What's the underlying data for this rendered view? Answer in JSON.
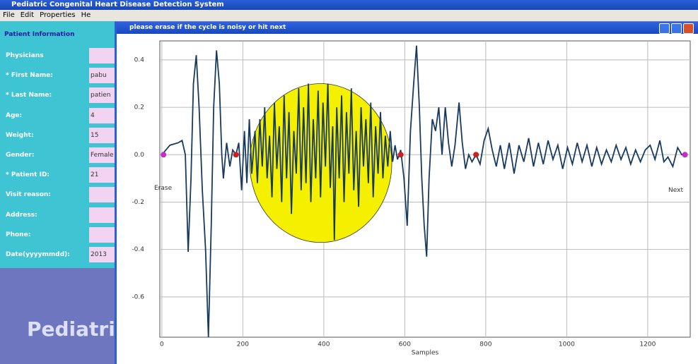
{
  "window": {
    "title": "Pediatric Congenital Heart Disease Detection System"
  },
  "menu": [
    "File",
    "Edit",
    "Properties",
    "He"
  ],
  "patient_panel": {
    "header": "Patient Information",
    "fields": [
      {
        "label": "Physicians"
      },
      {
        "label": "* First Name:",
        "value": "pabu"
      },
      {
        "label": "* Last Name:",
        "value": "patien"
      },
      {
        "label": "Age:",
        "value": "4"
      },
      {
        "label": "Weight:",
        "value": "15"
      },
      {
        "label": "Gender:",
        "value": "Female"
      },
      {
        "label": "* Patient ID:",
        "value": "21"
      },
      {
        "label": "Visit reason:"
      },
      {
        "label": "Address:"
      },
      {
        "label": "Phone:"
      },
      {
        "label": "Date(yyyymmdd):",
        "value": "2013"
      }
    ]
  },
  "banner": "Pediatric",
  "child_window": {
    "title": "please erase if the cycle is noisy or hit next"
  },
  "chart_data": {
    "type": "line",
    "x_label": "Samples",
    "color": "#173a60",
    "grid": true,
    "annotations": [
      "Erase",
      "Next"
    ],
    "xlim": [
      -5,
      1305
    ],
    "xticks": [
      0,
      200,
      400,
      600,
      800,
      1000,
      1200
    ],
    "ylim": [
      -0.77,
      0.48
    ],
    "yticks": [
      0.4,
      0.2,
      {
        "value": 0,
        "label": "0.0"
      },
      -0.2,
      -0.4,
      -0.6
    ],
    "highlight": {
      "color": "#f4f000",
      "x": [
        217,
        568
      ],
      "y": [
        -0.37,
        0.3
      ]
    },
    "x": [
      0,
      10,
      20,
      40,
      50,
      58,
      65,
      72,
      78,
      85,
      92,
      100,
      108,
      115,
      122,
      128,
      135,
      142,
      148,
      152,
      160,
      168,
      175,
      183,
      190,
      197,
      204,
      210,
      216,
      222,
      230,
      236,
      242,
      248,
      254,
      260,
      266,
      272,
      278,
      284,
      290,
      296,
      302,
      308,
      314,
      320,
      326,
      332,
      338,
      344,
      350,
      356,
      362,
      368,
      374,
      380,
      386,
      392,
      398,
      404,
      410,
      416,
      422,
      426,
      432,
      438,
      444,
      450,
      456,
      462,
      468,
      474,
      480,
      486,
      492,
      498,
      504,
      510,
      516,
      522,
      528,
      534,
      540,
      546,
      552,
      558,
      564,
      570,
      576,
      582,
      590,
      598,
      606,
      614,
      622,
      629,
      636,
      642,
      648,
      654,
      660,
      668,
      676,
      684,
      692,
      700,
      708,
      716,
      724,
      734,
      742,
      750,
      758,
      766,
      776,
      786,
      796,
      806,
      816,
      826,
      836,
      846,
      858,
      870,
      882,
      894,
      906,
      918,
      930,
      942,
      954,
      966,
      978,
      990,
      1002,
      1014,
      1026,
      1038,
      1050,
      1062,
      1074,
      1086,
      1098,
      1110,
      1122,
      1134,
      1146,
      1158,
      1170,
      1182,
      1194,
      1206,
      1218,
      1230,
      1240,
      1250,
      1262,
      1274,
      1284,
      1292
    ],
    "values": [
      0,
      0.02,
      0.04,
      0.05,
      0.06,
      0,
      -0.41,
      -0.1,
      0.3,
      0.42,
      0.2,
      -0.15,
      -0.4,
      -0.77,
      -0.3,
      0.2,
      0.44,
      0.3,
      0,
      -0.1,
      0.05,
      -0.05,
      0.02,
      0,
      0.05,
      -0.15,
      0.1,
      -0.12,
      0.15,
      -0.08,
      0.1,
      -0.12,
      0.15,
      -0.05,
      0.2,
      -0.1,
      0.08,
      -0.18,
      0.22,
      -0.06,
      0.12,
      -0.2,
      0.25,
      -0.1,
      0.18,
      -0.25,
      0.1,
      -0.08,
      0.28,
      -0.15,
      0.2,
      -0.12,
      0.3,
      -0.2,
      0.15,
      -0.1,
      0.27,
      -0.18,
      0.22,
      -0.05,
      0.3,
      -0.14,
      0.12,
      -0.36,
      0.2,
      -0.1,
      0.25,
      -0.2,
      0.18,
      -0.08,
      0.28,
      -0.15,
      0.1,
      -0.22,
      0.2,
      -0.05,
      0.15,
      -0.12,
      0.22,
      -0.18,
      0.12,
      -0.08,
      0.18,
      -0.1,
      0.08,
      -0.05,
      0.1,
      -0.03,
      0.04,
      -0.02,
      0.02,
      -0.1,
      -0.3,
      0.1,
      0.3,
      0.46,
      0.2,
      -0.1,
      -0.3,
      -0.43,
      -0.1,
      0.15,
      0.1,
      0.2,
      0,
      0.2,
      0.05,
      -0.05,
      0.04,
      0.22,
      0.05,
      -0.06,
      0,
      -0.03,
      0,
      -0.04,
      0.06,
      0.11,
      0.02,
      -0.05,
      0.04,
      -0.06,
      0.05,
      -0.08,
      0.04,
      -0.03,
      0.07,
      -0.05,
      0.05,
      -0.04,
      0.06,
      -0.02,
      0.04,
      -0.06,
      0.03,
      -0.04,
      0.05,
      -0.03,
      0.04,
      -0.05,
      0.03,
      -0.04,
      0.02,
      -0.03,
      0.04,
      -0.02,
      0.03,
      -0.04,
      0.02,
      -0.03,
      0.02,
      0.04,
      -0.02,
      0.06,
      -0.03,
      -0.01,
      -0.05,
      0.03,
      0,
      0
    ],
    "markers": [
      {
        "color": "#cc1f1f",
        "x": [
          183,
          590,
          776
        ],
        "values": [
          0,
          0,
          0
        ]
      },
      {
        "color": "#c030c8",
        "x": [
          4,
          1292
        ],
        "values": [
          0,
          0
        ]
      }
    ]
  }
}
